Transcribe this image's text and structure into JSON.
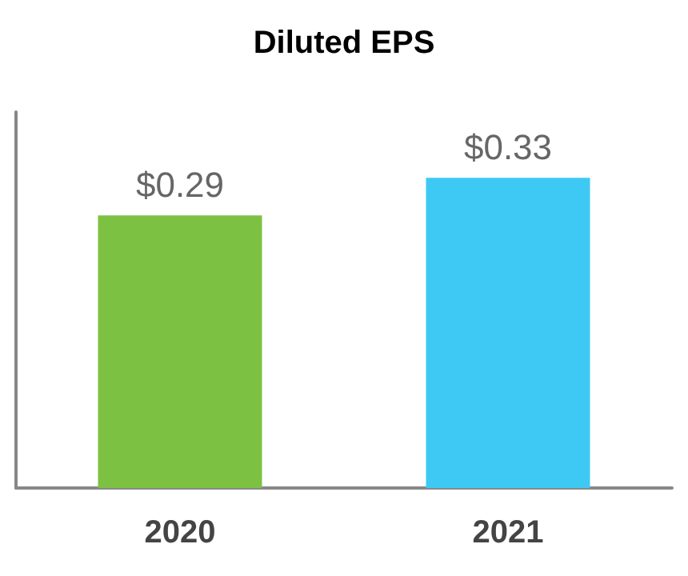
{
  "chart_data": {
    "type": "bar",
    "title": "Diluted EPS",
    "categories": [
      "2020",
      "2021"
    ],
    "values": [
      0.29,
      0.33
    ],
    "colors": [
      "#7dc142",
      "#3ec8f4"
    ],
    "value_labels": [
      "$0.29",
      "$0.33"
    ],
    "ylim": [
      0,
      0.4
    ],
    "tick_labels": "x",
    "grid": false
  }
}
